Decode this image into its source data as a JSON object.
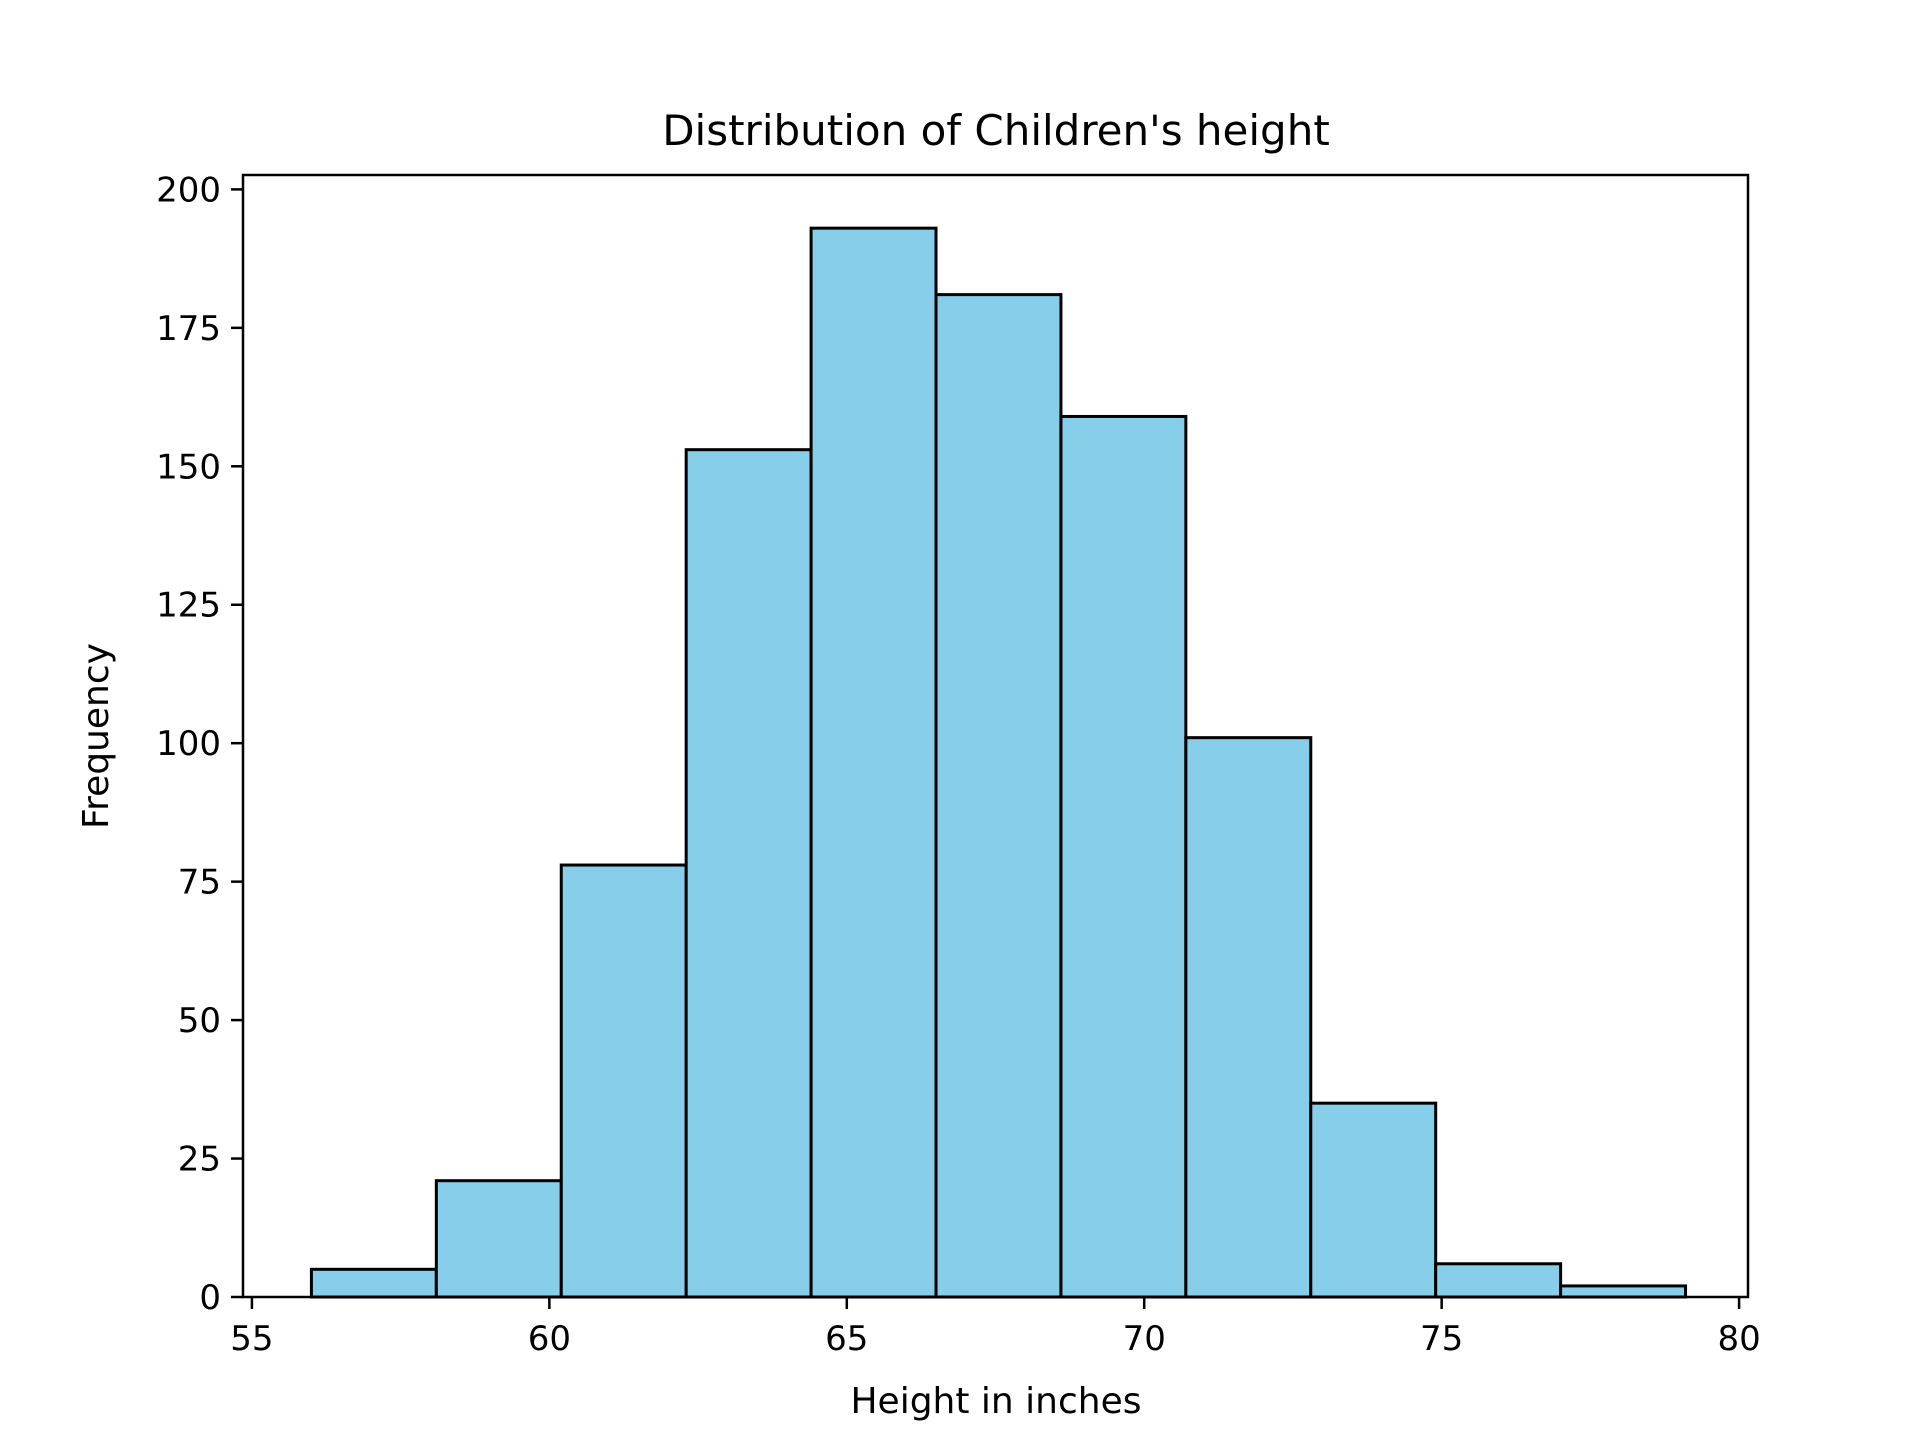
{
  "chart_data": {
    "type": "bar",
    "subtype": "histogram",
    "title": "Distribution of Children's height",
    "xlabel": "Height in inches",
    "ylabel": "Frequency",
    "xlim": [
      54.85,
      80.15
    ],
    "ylim": [
      0,
      202.6
    ],
    "x_ticks": [
      55,
      60,
      65,
      70,
      75,
      80
    ],
    "y_ticks": [
      0,
      25,
      50,
      75,
      100,
      125,
      150,
      175,
      200
    ],
    "bin_edges": [
      56.0,
      58.1,
      60.2,
      62.3,
      64.4,
      66.5,
      68.6,
      70.7,
      72.8,
      74.9,
      77.0,
      79.1
    ],
    "values": [
      5,
      21,
      78,
      153,
      193,
      181,
      159,
      101,
      35,
      6,
      2
    ],
    "grid": false,
    "legend": "none",
    "bar_color": "#87CEEB",
    "edge_color": "#000000"
  }
}
